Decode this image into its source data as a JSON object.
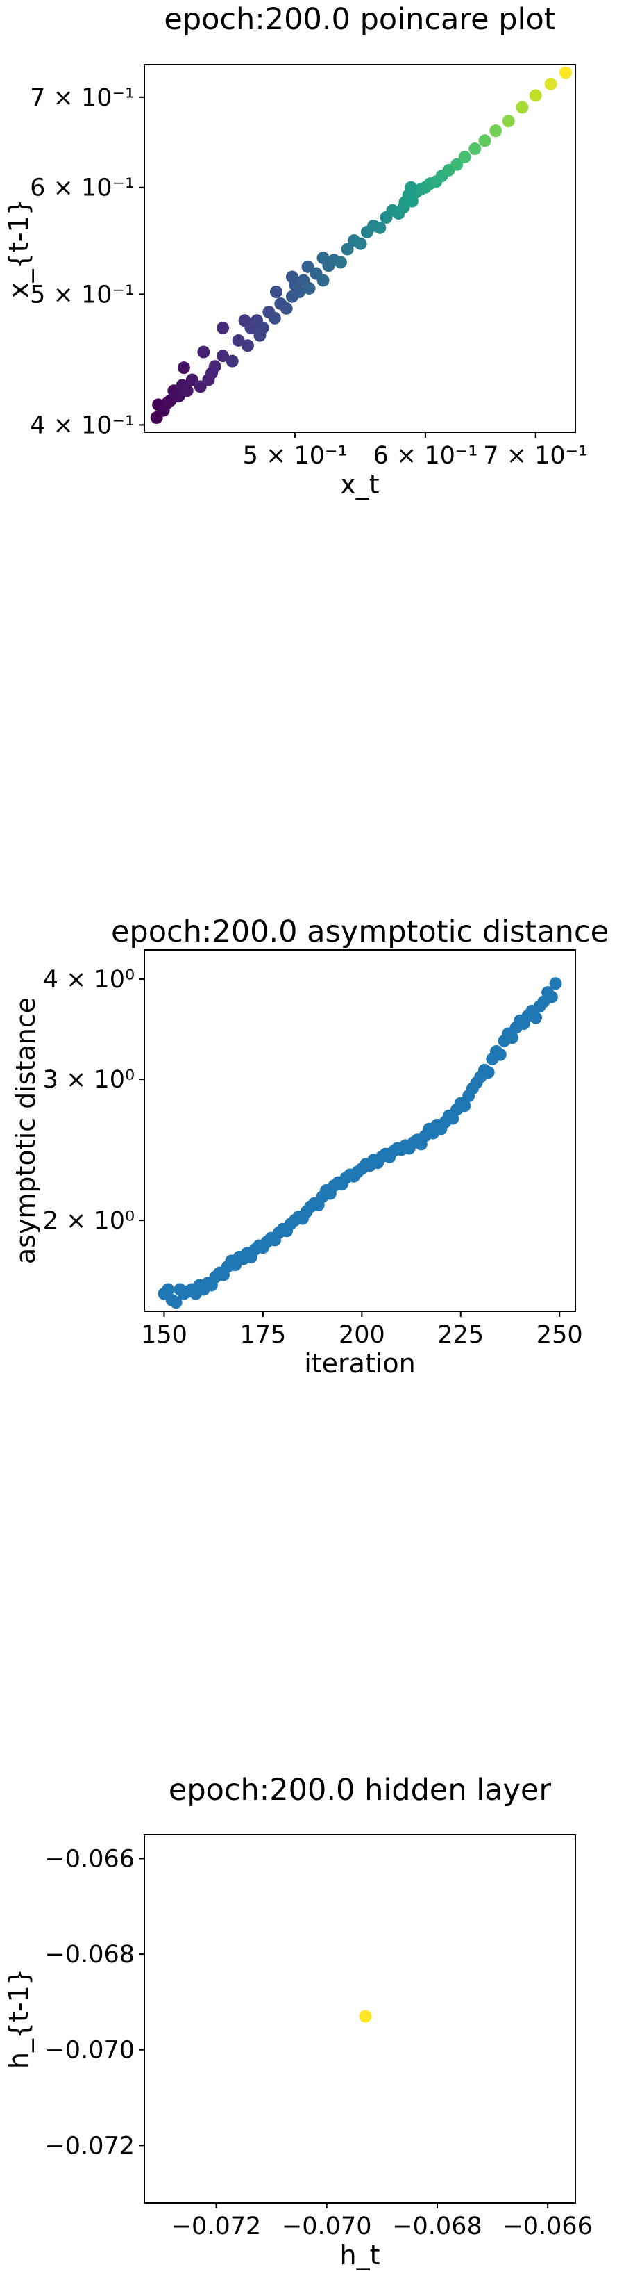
{
  "chart_data": [
    {
      "type": "scatter",
      "title": "epoch:200.0 poincare plot",
      "xlabel": "x_t",
      "ylabel": "x_{t-1}",
      "xscale": "log",
      "yscale": "log",
      "xlim": [
        0.405,
        0.74
      ],
      "ylim": [
        0.395,
        0.74
      ],
      "xticks": [
        {
          "value": 0.5,
          "label": "5 × 10⁻¹"
        },
        {
          "value": 0.6,
          "label": "6 × 10⁻¹"
        },
        {
          "value": 0.7,
          "label": "7 × 10⁻¹"
        }
      ],
      "yticks": [
        {
          "value": 0.4,
          "label": "4 × 10⁻¹"
        },
        {
          "value": 0.5,
          "label": "5 × 10⁻¹"
        },
        {
          "value": 0.6,
          "label": "6 × 10⁻¹"
        },
        {
          "value": 0.7,
          "label": "7 × 10⁻¹"
        }
      ],
      "colormap": "viridis",
      "grid": false,
      "points": [
        [
          0.412,
          0.405
        ],
        [
          0.413,
          0.414
        ],
        [
          0.416,
          0.41
        ],
        [
          0.418,
          0.415
        ],
        [
          0.42,
          0.417
        ],
        [
          0.422,
          0.424
        ],
        [
          0.425,
          0.42
        ],
        [
          0.427,
          0.428
        ],
        [
          0.43,
          0.424
        ],
        [
          0.433,
          0.432
        ],
        [
          0.438,
          0.427
        ],
        [
          0.443,
          0.432
        ],
        [
          0.447,
          0.442
        ],
        [
          0.452,
          0.45
        ],
        [
          0.458,
          0.446
        ],
        [
          0.462,
          0.462
        ],
        [
          0.468,
          0.458
        ],
        [
          0.47,
          0.472
        ],
        [
          0.474,
          0.478
        ],
        [
          0.478,
          0.472
        ],
        [
          0.482,
          0.485
        ],
        [
          0.486,
          0.48
        ],
        [
          0.49,
          0.492
        ],
        [
          0.494,
          0.488
        ],
        [
          0.498,
          0.498
        ],
        [
          0.503,
          0.502
        ],
        [
          0.506,
          0.512
        ],
        [
          0.51,
          0.505
        ],
        [
          0.515,
          0.518
        ],
        [
          0.52,
          0.512
        ],
        [
          0.524,
          0.525
        ],
        [
          0.528,
          0.53
        ],
        [
          0.533,
          0.528
        ],
        [
          0.538,
          0.54
        ],
        [
          0.543,
          0.548
        ],
        [
          0.548,
          0.545
        ],
        [
          0.553,
          0.556
        ],
        [
          0.558,
          0.562
        ],
        [
          0.563,
          0.56
        ],
        [
          0.568,
          0.57
        ],
        [
          0.573,
          0.577
        ],
        [
          0.578,
          0.574
        ],
        [
          0.583,
          0.585
        ],
        [
          0.586,
          0.592
        ],
        [
          0.589,
          0.586
        ],
        [
          0.592,
          0.595
        ],
        [
          0.596,
          0.598
        ],
        [
          0.6,
          0.6
        ],
        [
          0.604,
          0.604
        ],
        [
          0.609,
          0.606
        ],
        [
          0.614,
          0.612
        ],
        [
          0.62,
          0.618
        ],
        [
          0.627,
          0.624
        ],
        [
          0.634,
          0.632
        ],
        [
          0.643,
          0.641
        ],
        [
          0.652,
          0.65
        ],
        [
          0.662,
          0.661
        ],
        [
          0.674,
          0.672
        ],
        [
          0.687,
          0.688
        ],
        [
          0.7,
          0.702
        ],
        [
          0.715,
          0.716
        ],
        [
          0.73,
          0.73
        ],
        [
          0.452,
          0.472
        ],
        [
          0.466,
          0.478
        ],
        [
          0.487,
          0.502
        ],
        [
          0.498,
          0.515
        ],
        [
          0.509,
          0.524
        ],
        [
          0.52,
          0.532
        ],
        [
          0.428,
          0.441
        ],
        [
          0.44,
          0.453
        ],
        [
          0.5,
          0.508
        ],
        [
          0.445,
          0.437
        ],
        [
          0.476,
          0.466
        ],
        [
          0.582,
          0.58
        ],
        [
          0.588,
          0.6
        ]
      ]
    },
    {
      "type": "scatter",
      "title": "epoch:200.0 asymptotic distance",
      "xlabel": "iteration",
      "ylabel": "asymptotic distance",
      "yscale": "log",
      "xlim": [
        145,
        254
      ],
      "ylim": [
        1.54,
        4.35
      ],
      "xticks": [
        {
          "value": 150,
          "label": "150"
        },
        {
          "value": 175,
          "label": "175"
        },
        {
          "value": 200,
          "label": "200"
        },
        {
          "value": 225,
          "label": "225"
        },
        {
          "value": 250,
          "label": "250"
        }
      ],
      "yticks": [
        {
          "value": 2,
          "label": "2 × 10⁰"
        },
        {
          "value": 3,
          "label": "3 × 10⁰"
        },
        {
          "value": 4,
          "label": "4 × 10⁰"
        }
      ],
      "color": "#1f77b4",
      "grid": false,
      "x": [
        150,
        151,
        152,
        153,
        154,
        155,
        156,
        157,
        158,
        159,
        160,
        161,
        162,
        163,
        164,
        165,
        166,
        167,
        168,
        169,
        170,
        171,
        172,
        173,
        174,
        175,
        176,
        177,
        178,
        179,
        180,
        181,
        182,
        183,
        184,
        185,
        186,
        187,
        188,
        189,
        190,
        191,
        192,
        193,
        194,
        195,
        196,
        197,
        198,
        199,
        200,
        201,
        202,
        203,
        204,
        205,
        206,
        207,
        208,
        209,
        210,
        211,
        212,
        213,
        214,
        215,
        216,
        217,
        218,
        219,
        220,
        221,
        222,
        223,
        224,
        225,
        226,
        227,
        228,
        229,
        230,
        231,
        232,
        233,
        234,
        235,
        236,
        237,
        238,
        239,
        240,
        241,
        242,
        243,
        244,
        245,
        246,
        247,
        248,
        249
      ],
      "y": [
        1.62,
        1.64,
        1.59,
        1.58,
        1.64,
        1.62,
        1.63,
        1.64,
        1.62,
        1.66,
        1.64,
        1.67,
        1.66,
        1.7,
        1.72,
        1.71,
        1.75,
        1.78,
        1.76,
        1.8,
        1.79,
        1.82,
        1.8,
        1.84,
        1.86,
        1.85,
        1.88,
        1.9,
        1.89,
        1.93,
        1.95,
        1.94,
        1.98,
        2.0,
        2.02,
        2.01,
        2.05,
        2.08,
        2.1,
        2.09,
        2.14,
        2.18,
        2.16,
        2.21,
        2.23,
        2.22,
        2.26,
        2.28,
        2.27,
        2.3,
        2.32,
        2.35,
        2.34,
        2.38,
        2.36,
        2.4,
        2.42,
        2.4,
        2.44,
        2.46,
        2.45,
        2.48,
        2.46,
        2.5,
        2.52,
        2.49,
        2.55,
        2.6,
        2.57,
        2.63,
        2.6,
        2.65,
        2.7,
        2.68,
        2.75,
        2.8,
        2.78,
        2.86,
        2.92,
        2.97,
        3.02,
        3.08,
        3.06,
        3.18,
        3.25,
        3.22,
        3.35,
        3.42,
        3.38,
        3.48,
        3.55,
        3.52,
        3.6,
        3.65,
        3.58,
        3.7,
        3.75,
        3.85,
        3.8,
        3.95
      ]
    },
    {
      "type": "scatter",
      "title": "epoch:200.0 hidden layer",
      "xlabel": "h_t",
      "ylabel": "h_{t-1}",
      "xlim": [
        -0.0733,
        -0.0655
      ],
      "ylim": [
        -0.0732,
        -0.0655
      ],
      "xticks": [
        {
          "value": -0.072,
          "label": "−0.072"
        },
        {
          "value": -0.07,
          "label": "−0.070"
        },
        {
          "value": -0.068,
          "label": "−0.068"
        },
        {
          "value": -0.066,
          "label": "−0.066"
        }
      ],
      "yticks": [
        {
          "value": -0.066,
          "label": "−0.066"
        },
        {
          "value": -0.068,
          "label": "−0.068"
        },
        {
          "value": -0.07,
          "label": "−0.070"
        },
        {
          "value": -0.072,
          "label": "−0.072"
        }
      ],
      "color": "#fde725",
      "grid": false,
      "points": [
        [
          -0.0693,
          -0.0693
        ]
      ]
    }
  ]
}
